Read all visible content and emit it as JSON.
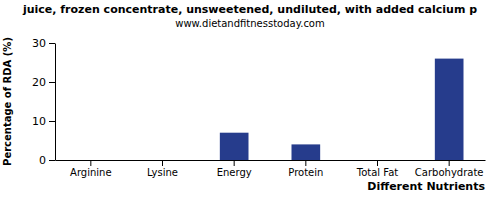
{
  "chart_data": {
    "type": "bar",
    "title": "juice, frozen concentrate, unsweetened, undiluted, with added calcium p",
    "subtitle": "www.dietandfitnesstoday.com",
    "x_label": "Different Nutrients",
    "y_label": "Percentage of RDA (%)",
    "categories": [
      "Arginine",
      "Lysine",
      "Energy",
      "Protein",
      "Total Fat",
      "Carbohydrate"
    ],
    "values": [
      0,
      0,
      7,
      4,
      0,
      26
    ],
    "color": "#263c8c",
    "ylim": [
      0,
      30
    ],
    "yticks": [
      0,
      10,
      20,
      30
    ],
    "grid": false
  }
}
